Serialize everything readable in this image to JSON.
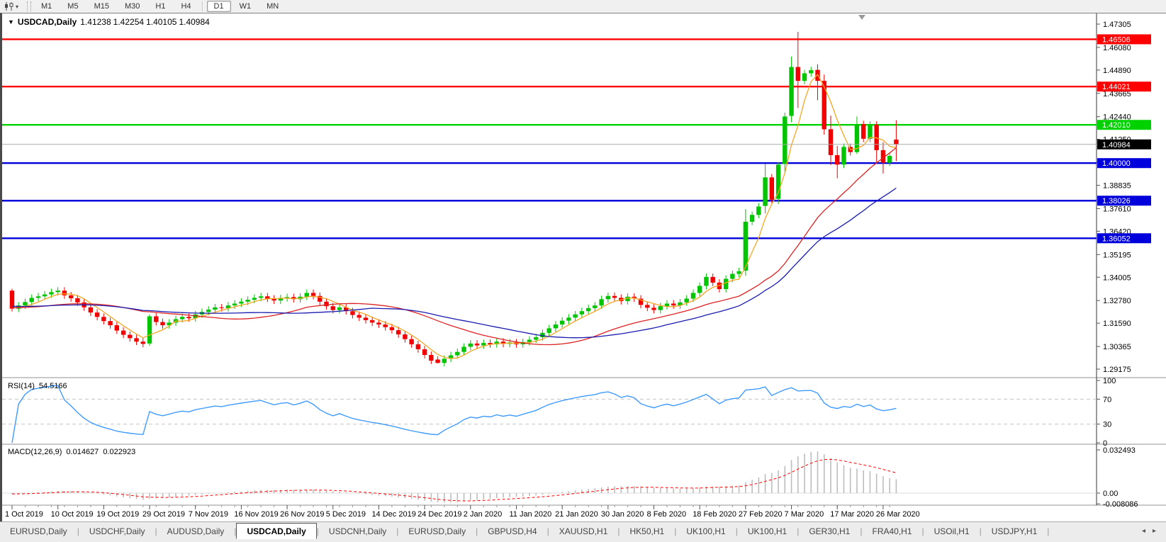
{
  "toolbar": {
    "icon_caret": "▾",
    "timeframes": [
      "M1",
      "M5",
      "M15",
      "M30",
      "H1",
      "H4",
      "D1",
      "W1",
      "MN"
    ],
    "active_timeframe": "D1"
  },
  "chart_data": {
    "type": "candlestick",
    "title": {
      "dropdown_icon": "▼",
      "symbol": "USDCAD,Daily",
      "open": "1.41238",
      "high": "1.42254",
      "low": "1.40105",
      "close": "1.40984"
    },
    "y_axis": {
      "top_value": 1.47305,
      "bottom_value": 1.29175,
      "ticks": [
        "1.47305",
        "1.46080",
        "1.44890",
        "1.43665",
        "1.42440",
        "1.41250",
        "1.40040",
        "1.38835",
        "1.37610",
        "1.36420",
        "1.35195",
        "1.34005",
        "1.32780",
        "1.31590",
        "1.30365",
        "1.29175"
      ]
    },
    "x_labels": [
      "1 Oct 2019",
      "10 Oct 2019",
      "19 Oct 2019",
      "29 Oct 2019",
      "7 Nov 2019",
      "16 Nov 2019",
      "26 Nov 2019",
      "5 Dec 2019",
      "14 Dec 2019",
      "24 Dec 2019",
      "2 Jan 2020",
      "11 Jan 2020",
      "21 Jan 2020",
      "30 Jan 2020",
      "8 Feb 2020",
      "18 Feb 2020",
      "27 Feb 2020",
      "7 Mar 2020",
      "17 Mar 2020",
      "26 Mar 2020"
    ],
    "bars_per_label": 7,
    "first_open": 1.333,
    "default_wick": 0.0018,
    "closes": [
      1.3235,
      1.3252,
      1.327,
      1.3292,
      1.33,
      1.331,
      1.3322,
      1.333,
      1.3305,
      1.329,
      1.3268,
      1.3242,
      1.3215,
      1.3192,
      1.317,
      1.3148,
      1.312,
      1.3098,
      1.308,
      1.3062,
      1.305,
      1.3195,
      1.3165,
      1.3148,
      1.3162,
      1.318,
      1.3192,
      1.3185,
      1.3205,
      1.3218,
      1.323,
      1.3242,
      1.3238,
      1.3252,
      1.3262,
      1.3272,
      1.3282,
      1.3292,
      1.33,
      1.3288,
      1.3278,
      1.329,
      1.3296,
      1.3285,
      1.3298,
      1.3318,
      1.3302,
      1.3272,
      1.3248,
      1.3228,
      1.3242,
      1.3222,
      1.3202,
      1.3188,
      1.3175,
      1.3162,
      1.3152,
      1.3138,
      1.3122,
      1.31,
      1.3075,
      1.3048,
      1.3022,
      1.2992,
      1.2962,
      1.295,
      1.2972,
      1.299,
      1.3008,
      1.3035,
      1.3052,
      1.3042,
      1.3055,
      1.3048,
      1.3062,
      1.305,
      1.3058,
      1.3048,
      1.306,
      1.3072,
      1.3085,
      1.3108,
      1.3132,
      1.3152,
      1.3172,
      1.3188,
      1.3205,
      1.3222,
      1.3238,
      1.3252,
      1.3285,
      1.3302,
      1.3292,
      1.3275,
      1.3298,
      1.3288,
      1.3255,
      1.324,
      1.3228,
      1.3248,
      1.3262,
      1.3252,
      1.3268,
      1.3288,
      1.3318,
      1.3355,
      1.3402,
      1.3372,
      1.3338,
      1.3392,
      1.3418,
      1.3432,
      1.3692,
      1.3728,
      1.3772,
      1.3925,
      1.3808,
      1.3992,
      1.4245,
      1.4505,
      1.4432,
      1.4472,
      1.4488,
      1.4432,
      1.4178,
      1.4042,
      1.3992,
      1.4085,
      1.4058,
      1.4205,
      1.4128,
      1.4202,
      1.4068,
      1.4002,
      1.4038,
      1.40984
    ],
    "overrides": {
      "0": [
        1.333,
        1.334,
        1.322,
        1.3235
      ],
      "21": [
        1.3052,
        1.3205,
        1.304,
        1.3195
      ],
      "65": [
        1.2968,
        1.2985,
        1.2948,
        1.295
      ],
      "112": [
        1.3435,
        1.3758,
        1.3408,
        1.3692
      ],
      "115": [
        1.3775,
        1.3995,
        1.3735,
        1.3925
      ],
      "117": [
        1.3812,
        1.4005,
        1.3785,
        1.3992
      ],
      "118": [
        1.3995,
        1.4265,
        1.395,
        1.4245
      ],
      "119": [
        1.4248,
        1.456,
        1.4215,
        1.4505
      ],
      "120": [
        1.4505,
        1.469,
        1.429,
        1.4432
      ],
      "123": [
        1.449,
        1.452,
        1.433,
        1.4432
      ],
      "124": [
        1.4432,
        1.4465,
        1.415,
        1.4178
      ],
      "125": [
        1.4178,
        1.425,
        1.399,
        1.4042
      ],
      "126": [
        1.4042,
        1.409,
        1.392,
        1.3992
      ],
      "129": [
        1.4058,
        1.4245,
        1.4048,
        1.4205
      ],
      "132": [
        1.4202,
        1.422,
        1.4005,
        1.4068
      ],
      "133": [
        1.4068,
        1.411,
        1.3945,
        1.4002
      ],
      "135": [
        1.41238,
        1.42254,
        1.40105,
        1.40984
      ]
    },
    "ma_prehistory_segments": [
      [
        20,
        1.331
      ],
      [
        20,
        1.327
      ],
      [
        25,
        1.324
      ]
    ],
    "moving_averages": [
      {
        "name": "ma-fast",
        "period": 5,
        "color": "#f5a623"
      },
      {
        "name": "ma-medium",
        "period": 25,
        "color": "#dd2222"
      },
      {
        "name": "ma-slow",
        "period": 35,
        "color": "#1b1bb0"
      }
    ],
    "price_lines": [
      {
        "label": "1.46506",
        "color": "#ff0000"
      },
      {
        "label": "1.44021",
        "color": "#ff0000"
      },
      {
        "label": "1.42010",
        "color": "#00d200"
      },
      {
        "label": "1.40000",
        "color": "#0000dc"
      },
      {
        "label": "1.38026",
        "color": "#0000dc"
      },
      {
        "label": "1.36052",
        "color": "#0000dc"
      }
    ],
    "current_price": {
      "label": "1.40984",
      "color": "#000000"
    },
    "colors": {
      "bull": "#00c400",
      "bear": "#f20000",
      "background": "#ffffff",
      "axis_text": "#000000",
      "current_line": "#ababab",
      "rsi_line": "#3e9bff",
      "macd_hist": "#bdbdbd",
      "macd_signal": "#ff0000",
      "level_dash": "#c4c4c4",
      "tick": "#555555",
      "minor_tick": "#999999"
    }
  },
  "rsi": {
    "label": "RSI(14)",
    "value": "54.5166",
    "period": 14,
    "axis_ticks": [
      "100",
      "70",
      "30",
      "0"
    ],
    "axis_values": [
      100,
      70,
      30,
      0
    ],
    "level_lines": [
      70,
      30
    ]
  },
  "macd": {
    "label": "MACD(12,26,9)",
    "main_value": "0.014627",
    "signal_value": "0.022923",
    "fast": 12,
    "slow": 26,
    "signal": 9,
    "axis_ticks": [
      "0.032493",
      "0.00",
      "-0.008086"
    ],
    "axis_values": [
      0.032493,
      0,
      -0.008086
    ]
  },
  "tabs": {
    "items": [
      "EURUSD,Daily",
      "USDCHF,Daily",
      "AUDUSD,Daily",
      "USDCAD,Daily",
      "USDCNH,Daily",
      "EURUSD,Daily",
      "GBPUSD,H4",
      "XAUUSD,H1",
      "HK50,H1",
      "UK100,H1",
      "UK100,H1",
      "GER30,H1",
      "FRA40,H1",
      "USOil,H1",
      "USDJPY,H1"
    ],
    "active_index": 3,
    "scroll_left_icon": "◂",
    "scroll_right_icon": "▸"
  }
}
